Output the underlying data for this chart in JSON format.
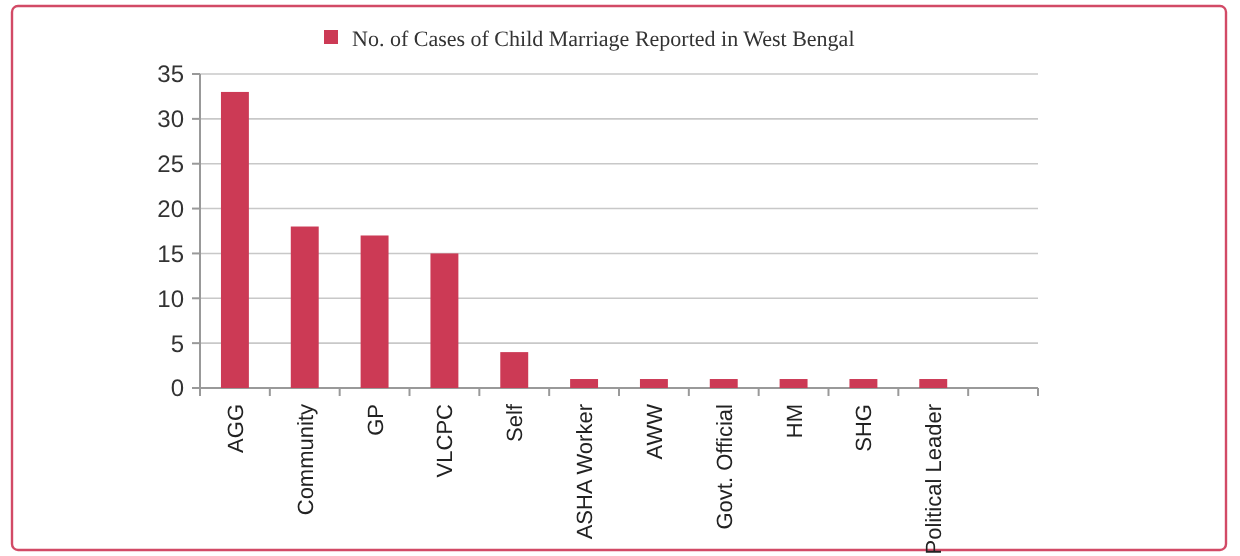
{
  "chart_data": {
    "type": "bar",
    "categories": [
      "AGG",
      "Community",
      "GP",
      "VLCPC",
      "Self",
      "ASHA Worker",
      "AWW",
      "Govt. Official",
      "HM",
      "SHG",
      "Political Leader",
      null
    ],
    "series": [
      {
        "name": "No. of Cases of Child Marriage Reported in West Bengal",
        "color": "#cc3a55",
        "values": [
          33,
          18,
          17,
          15,
          4,
          1,
          1,
          1,
          1,
          1,
          1,
          null
        ]
      }
    ],
    "ylim": [
      0,
      35
    ],
    "yticks": [
      0,
      5,
      10,
      15,
      20,
      25,
      30,
      35
    ],
    "grid": "y",
    "legend": "top"
  }
}
